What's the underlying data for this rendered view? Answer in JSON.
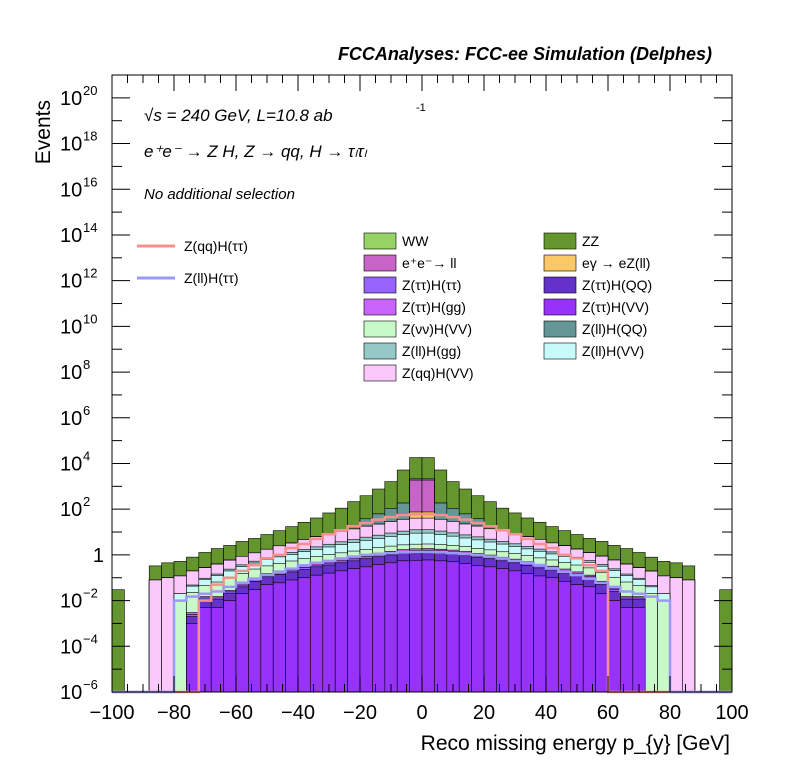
{
  "chart_data": {
    "type": "bar",
    "histogram": "stacked",
    "title": "FCCAnalyses: FCC-ee Simulation (Delphes)",
    "xlabel": "Reco missing energy p_{y} [GeV]",
    "ylabel": "Events",
    "xlim": [
      -100,
      100
    ],
    "ylim": [
      1e-06,
      1e+21
    ],
    "yscale": "log",
    "x_ticks": [
      "−100",
      "−80",
      "−60",
      "−40",
      "−20",
      "0",
      "20",
      "40",
      "60",
      "80",
      "100"
    ],
    "y_ticks": [
      {
        "kind": "one"
      },
      {
        "kind": "exp",
        "base": "10",
        "exp": "−6"
      },
      {
        "kind": "exp",
        "base": "10",
        "exp": "−4"
      },
      {
        "kind": "exp",
        "base": "10",
        "exp": "−2"
      },
      {
        "kind": "exp",
        "base": "10",
        "exp": "2"
      },
      {
        "kind": "exp",
        "base": "10",
        "exp": "4"
      },
      {
        "kind": "exp",
        "base": "10",
        "exp": "6"
      },
      {
        "kind": "exp",
        "base": "10",
        "exp": "8"
      },
      {
        "kind": "exp",
        "base": "10",
        "exp": "10"
      },
      {
        "kind": "exp",
        "base": "10",
        "exp": "12"
      },
      {
        "kind": "exp",
        "base": "10",
        "exp": "14"
      },
      {
        "kind": "exp",
        "base": "10",
        "exp": "16"
      },
      {
        "kind": "exp",
        "base": "10",
        "exp": "18"
      },
      {
        "kind": "exp",
        "base": "10",
        "exp": "20"
      }
    ],
    "annotations": {
      "energy": "√s = 240 GeV, L=10.8 ab",
      "lumi_exp": "-1",
      "process": "e⁺e⁻ → Z H, Z → qq, H → τₗτₗ",
      "selection": "No additional selection"
    },
    "legend_position": "top",
    "line_legend": [
      {
        "label": "Z(qq)H(ττ)",
        "color": "#f5908e"
      },
      {
        "label": "Z(ll)H(ττ)",
        "color": "#9a9af5"
      }
    ],
    "fill_legend": [
      {
        "label": "WW",
        "color": "#96d264"
      },
      {
        "label": "ZZ",
        "color": "#64962d"
      },
      {
        "label": "e⁺e⁻→ ll",
        "color": "#c864c8"
      },
      {
        "label": "eγ → eZ(ll)",
        "color": "#fac864"
      },
      {
        "label": "Z(ττ)H(ττ)",
        "color": "#9664fa"
      },
      {
        "label": "Z(ττ)H(QQ)",
        "color": "#6432c8"
      },
      {
        "label": "Z(ττ)H(gg)",
        "color": "#c864fa"
      },
      {
        "label": "Z(ττ)H(VV)",
        "color": "#9632fa"
      },
      {
        "label": "Z(νν)H(VV)",
        "color": "#c8fac8"
      },
      {
        "label": "Z(ll)H(QQ)",
        "color": "#649696"
      },
      {
        "label": "Z(ll)H(gg)",
        "color": "#96c8c8"
      },
      {
        "label": "Z(ll)H(VV)",
        "color": "#c8fafa"
      },
      {
        "label": "Z(qq)H(VV)",
        "color": "#fac8fa"
      }
    ],
    "x": [
      -98,
      -94,
      -90,
      -86,
      -82,
      -78,
      -74,
      -70,
      -66,
      -62,
      -58,
      -54,
      -50,
      -46,
      -42,
      -38,
      -34,
      -30,
      -26,
      -22,
      -18,
      -14,
      -10,
      -6,
      -2,
      2,
      6,
      10,
      14,
      18,
      22,
      26,
      30,
      34,
      38,
      42,
      46,
      50,
      54,
      58,
      62,
      66,
      70,
      74,
      78,
      82,
      86,
      90,
      94,
      98
    ],
    "stack": [
      {
        "name": "Z(ττ)H(VV)",
        "color": "#9632fa",
        "values": [
          0,
          0,
          0,
          0,
          0,
          0,
          0.001,
          0.005,
          0.005,
          0.01,
          0.02,
          0.03,
          0.05,
          0.06,
          0.08,
          0.1,
          0.13,
          0.16,
          0.2,
          0.25,
          0.3,
          0.38,
          0.45,
          0.55,
          0.58,
          0.6,
          0.55,
          0.5,
          0.42,
          0.35,
          0.3,
          0.25,
          0.2,
          0.15,
          0.12,
          0.1,
          0.07,
          0.05,
          0.04,
          0.02,
          0.01,
          0.005,
          0.005,
          0,
          0,
          0,
          0,
          0,
          0,
          0
        ]
      },
      {
        "name": "Z(ττ)H(QQ)",
        "color": "#6432c8",
        "values": [
          0,
          0,
          0,
          0,
          0,
          0,
          0.001,
          0.006,
          0.006,
          0.01,
          0.02,
          0.04,
          0.06,
          0.08,
          0.1,
          0.13,
          0.17,
          0.2,
          0.25,
          0.3,
          0.38,
          0.45,
          0.55,
          0.65,
          0.7,
          0.72,
          0.68,
          0.62,
          0.55,
          0.45,
          0.38,
          0.3,
          0.25,
          0.2,
          0.15,
          0.12,
          0.09,
          0.07,
          0.05,
          0.03,
          0.015,
          0.006,
          0.006,
          0,
          0,
          0,
          0,
          0,
          0,
          0
        ]
      },
      {
        "name": "Z(ττ)H(ττ)",
        "color": "#9664fa",
        "values": [
          0,
          0,
          0,
          0,
          0,
          0,
          0.0005,
          0.002,
          0.002,
          0.004,
          0.008,
          0.015,
          0.02,
          0.03,
          0.04,
          0.05,
          0.06,
          0.08,
          0.1,
          0.12,
          0.15,
          0.18,
          0.22,
          0.25,
          0.28,
          0.29,
          0.27,
          0.25,
          0.22,
          0.18,
          0.15,
          0.12,
          0.1,
          0.08,
          0.06,
          0.05,
          0.04,
          0.03,
          0.02,
          0.01,
          0.005,
          0.002,
          0.002,
          0,
          0,
          0,
          0,
          0,
          0,
          0
        ]
      },
      {
        "name": "Z(ττ)H(gg)",
        "color": "#c864fa",
        "values": [
          0,
          0,
          0,
          0,
          0,
          0,
          0.0005,
          0.002,
          0.002,
          0.004,
          0.008,
          0.015,
          0.02,
          0.03,
          0.04,
          0.05,
          0.06,
          0.08,
          0.1,
          0.12,
          0.15,
          0.18,
          0.22,
          0.25,
          0.28,
          0.29,
          0.27,
          0.25,
          0.22,
          0.18,
          0.15,
          0.12,
          0.1,
          0.08,
          0.06,
          0.05,
          0.04,
          0.03,
          0.02,
          0.01,
          0.005,
          0.002,
          0.002,
          0,
          0,
          0,
          0,
          0,
          0,
          0
        ]
      },
      {
        "name": "Z(νν)H(VV)",
        "color": "#c8fac8",
        "values": [
          0,
          0,
          0,
          0,
          0,
          0.01,
          0.02,
          0.03,
          0.05,
          0.07,
          0.1,
          0.14,
          0.18,
          0.22,
          0.28,
          0.35,
          0.42,
          0.5,
          0.58,
          0.68,
          0.78,
          0.88,
          0.98,
          1.05,
          1.1,
          1.1,
          1.05,
          0.98,
          0.88,
          0.78,
          0.68,
          0.58,
          0.5,
          0.42,
          0.35,
          0.28,
          0.22,
          0.18,
          0.14,
          0.1,
          0.07,
          0.05,
          0.03,
          0.02,
          0.01,
          0,
          0,
          0,
          0,
          0
        ]
      },
      {
        "name": "Z(ll)H(VV)",
        "color": "#c8fafa",
        "values": [
          0,
          0,
          0,
          0,
          0,
          0.01,
          0.02,
          0.04,
          0.06,
          0.1,
          0.15,
          0.2,
          0.3,
          0.4,
          0.5,
          0.7,
          0.9,
          1.2,
          1.6,
          2,
          2.6,
          3.2,
          4,
          5,
          6,
          6,
          5,
          4,
          3.2,
          2.6,
          2,
          1.6,
          1.2,
          0.9,
          0.7,
          0.5,
          0.4,
          0.3,
          0.2,
          0.15,
          0.1,
          0.06,
          0.04,
          0.02,
          0.01,
          0,
          0,
          0,
          0,
          0
        ]
      },
      {
        "name": "Z(ll)H(gg)",
        "color": "#96c8c8",
        "values": [
          0,
          0,
          0,
          0,
          0,
          0,
          0.005,
          0.01,
          0.02,
          0.04,
          0.06,
          0.09,
          0.13,
          0.18,
          0.25,
          0.35,
          0.5,
          0.7,
          0.9,
          1.2,
          1.6,
          2,
          2.6,
          3.2,
          3.6,
          3.6,
          3.2,
          2.6,
          2,
          1.6,
          1.2,
          0.9,
          0.7,
          0.5,
          0.35,
          0.25,
          0.18,
          0.13,
          0.09,
          0.06,
          0.04,
          0.02,
          0.01,
          0.005,
          0,
          0,
          0,
          0,
          0,
          0
        ]
      },
      {
        "name": "Z(qq)H(VV)",
        "color": "#fac8fa",
        "values": [
          0,
          0,
          0,
          0.08,
          0.1,
          0.1,
          0.15,
          0.18,
          0.25,
          0.35,
          0.5,
          0.7,
          1,
          1.5,
          2,
          3,
          4,
          5.5,
          7,
          9,
          12,
          15,
          20,
          25,
          28,
          28,
          25,
          20,
          15,
          12,
          9,
          7,
          5.5,
          4,
          3,
          2,
          1.5,
          1,
          0.7,
          0.5,
          0.35,
          0.25,
          0.18,
          0.15,
          0.1,
          0.1,
          0.08,
          0,
          0,
          0
        ]
      },
      {
        "name": "eγ → eZ(ll)",
        "color": "#fac864",
        "values": [
          0,
          0,
          0,
          0,
          0,
          0,
          0,
          0,
          0,
          0,
          0,
          0,
          0,
          0,
          0,
          0,
          0,
          0,
          0,
          0,
          0,
          0,
          0,
          0,
          35,
          35,
          0,
          0,
          0,
          0,
          0,
          0,
          0,
          0,
          0,
          0,
          0,
          0,
          0,
          0,
          0,
          0,
          0,
          0,
          0,
          0,
          0,
          0,
          0,
          0
        ]
      },
      {
        "name": "e⁺e⁻→ ll",
        "color": "#c864c8",
        "values": [
          0,
          0,
          0,
          0,
          0,
          0,
          0,
          0,
          0,
          0,
          0,
          0,
          0,
          0,
          0,
          0,
          0,
          0,
          0,
          0,
          0,
          0,
          0,
          0,
          1800,
          1800,
          0,
          0,
          0,
          0,
          0,
          0,
          0,
          0,
          0,
          0,
          0,
          0,
          0,
          0,
          0,
          0,
          0,
          0,
          0,
          0,
          0,
          0,
          0,
          0
        ]
      },
      {
        "name": "Z(ll)H(QQ)",
        "color": "#649696",
        "values": [
          0,
          0,
          0,
          0,
          0,
          0,
          0,
          0,
          0,
          0,
          0,
          0,
          0,
          0,
          0,
          0,
          0,
          0,
          0,
          0,
          20,
          40,
          80,
          150,
          250,
          250,
          150,
          80,
          40,
          20,
          0,
          0,
          0,
          0,
          0,
          0,
          0,
          0,
          0,
          0,
          0,
          0,
          0,
          0,
          0,
          0,
          0,
          0,
          0,
          0
        ]
      },
      {
        "name": "WW",
        "color": "#96d264",
        "values": [
          0,
          0,
          0,
          0,
          0,
          0,
          0,
          0,
          0,
          0,
          0,
          0,
          0,
          0,
          0,
          0,
          0,
          0,
          0,
          0,
          0,
          0,
          0,
          0,
          0,
          0,
          0,
          0,
          0,
          0,
          0,
          0,
          0,
          0,
          0,
          0,
          0,
          0,
          0,
          0,
          0,
          0,
          0,
          0,
          0,
          0,
          0,
          0,
          0,
          0
        ]
      },
      {
        "name": "ZZ",
        "color": "#64962d",
        "values": [
          0.03,
          0,
          0,
          0.25,
          0.35,
          0.4,
          0.6,
          1,
          1.5,
          2,
          3,
          4,
          6,
          9,
          14,
          22,
          35,
          60,
          100,
          200,
          350,
          700,
          1500,
          5000,
          16000,
          16000,
          5000,
          1500,
          700,
          350,
          200,
          100,
          60,
          35,
          22,
          14,
          9,
          6,
          4,
          3,
          2,
          1.5,
          1,
          0.6,
          0.4,
          0.35,
          0.25,
          0,
          0,
          0.03
        ]
      }
    ],
    "lines": [
      {
        "name": "Z(qq)H(ττ)",
        "color": "#f5908e",
        "values": [
          0,
          0,
          0,
          0,
          0,
          0,
          0,
          0.01,
          0.05,
          0.1,
          0.2,
          0.35,
          0.7,
          1,
          2,
          3,
          5,
          8,
          12,
          18,
          25,
          35,
          45,
          55,
          60,
          60,
          55,
          45,
          35,
          25,
          18,
          12,
          8,
          5,
          3,
          2,
          1,
          0.7,
          0.35,
          0.2,
          0,
          0,
          0,
          0,
          0,
          0,
          0,
          0,
          0,
          0
        ]
      },
      {
        "name": "Z(ll)H(ττ)",
        "color": "#9a9af5",
        "values": [
          0,
          0,
          0,
          0,
          0,
          0.01,
          0.015,
          0.02,
          0.025,
          0.04,
          0.06,
          0.09,
          0.13,
          0.18,
          0.25,
          0.35,
          0.45,
          0.55,
          0.7,
          0.85,
          1,
          1.1,
          1.2,
          1.3,
          1.35,
          1.35,
          1.3,
          1.2,
          1.1,
          1,
          0.85,
          0.7,
          0.55,
          0.45,
          0.35,
          0.25,
          0.18,
          0.13,
          0.09,
          0.06,
          0.04,
          0.025,
          0.02,
          0.015,
          0.01,
          0,
          0,
          0,
          0,
          0
        ]
      }
    ]
  }
}
